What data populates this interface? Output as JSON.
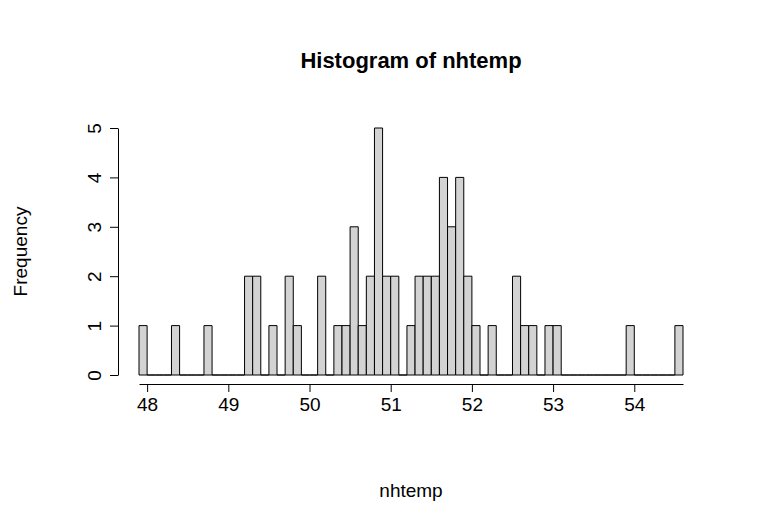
{
  "chart_data": {
    "type": "histogram",
    "title": "Histogram of nhtemp",
    "x_label": "nhtemp",
    "y_label": "Frequency",
    "bins": [
      47.9,
      48.0,
      48.1,
      48.2,
      48.3,
      48.4,
      48.5,
      48.6,
      48.7,
      48.8,
      48.9,
      49.0,
      49.1,
      49.2,
      49.3,
      49.4,
      49.5,
      49.6,
      49.7,
      49.8,
      49.9,
      50.0,
      50.1,
      50.2,
      50.3,
      50.4,
      50.5,
      50.6,
      50.7,
      50.8,
      50.9,
      51.0,
      51.1,
      51.2,
      51.3,
      51.4,
      51.5,
      51.6,
      51.7,
      51.8,
      51.9,
      52.0,
      52.1,
      52.2,
      52.3,
      52.4,
      52.5,
      52.6,
      52.7,
      52.8,
      52.9,
      53.0,
      53.1,
      53.2,
      53.3,
      53.4,
      53.5,
      53.6,
      53.7,
      53.8,
      53.9,
      54.0,
      54.1,
      54.2,
      54.3,
      54.4,
      54.5,
      54.6
    ],
    "counts": [
      1,
      0,
      0,
      0,
      1,
      0,
      0,
      0,
      1,
      0,
      0,
      0,
      0,
      2,
      2,
      0,
      1,
      0,
      2,
      1,
      0,
      0,
      2,
      0,
      1,
      1,
      3,
      1,
      2,
      5,
      2,
      2,
      0,
      1,
      2,
      2,
      2,
      4,
      3,
      4,
      2,
      1,
      0,
      1,
      0,
      0,
      2,
      1,
      1,
      0,
      1,
      1,
      0,
      0,
      0,
      0,
      0,
      0,
      0,
      0,
      1,
      0,
      0,
      0,
      0,
      0,
      1
    ],
    "color": "#d3d3d3",
    "xlim": [
      47.9,
      54.6
    ],
    "ylim": [
      0,
      5
    ],
    "xticks": [
      48,
      49,
      50,
      51,
      52,
      53,
      54
    ],
    "yticks": [
      0,
      1,
      2,
      3,
      4,
      5
    ]
  }
}
